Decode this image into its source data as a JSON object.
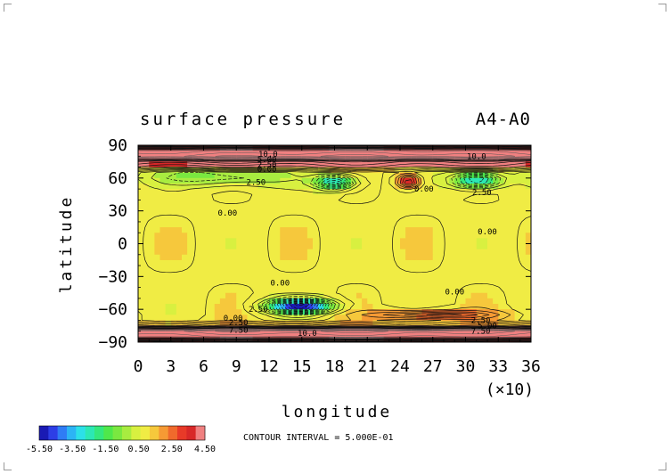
{
  "chart_data": {
    "type": "heatmap",
    "title": "surface pressure",
    "title_right": "A4-A0",
    "xlabel": "longitude",
    "ylabel": "latitude",
    "x_multiplier_label": "(×10)",
    "xticks": [
      0,
      3,
      6,
      9,
      12,
      15,
      18,
      21,
      24,
      27,
      30,
      33,
      36
    ],
    "yticks": [
      90,
      60,
      30,
      0,
      -30,
      -60,
      -90
    ],
    "xlim": [
      0,
      36
    ],
    "ylim": [
      -90,
      90
    ],
    "contour_interval_text": "CONTOUR INTERVAL = 5.000E-01",
    "colorbar": {
      "labels": [
        "-5.50",
        "-3.50",
        "-1.50",
        "0.50",
        "2.50",
        "4.50"
      ],
      "colors": [
        "#1a1ab4",
        "#2d3ee6",
        "#2f7cf5",
        "#2cb4f5",
        "#2ce0e8",
        "#2ce8b4",
        "#34e87c",
        "#4fe84a",
        "#7ae840",
        "#a8ec40",
        "#d8f040",
        "#f0ec44",
        "#f6c83c",
        "#f69a34",
        "#f06a2c",
        "#e83a28",
        "#d82828",
        "#f08080"
      ]
    },
    "contour_labels": [
      {
        "text": "10.0",
        "lon": 11.9,
        "lat": 82
      },
      {
        "text": "5.00",
        "lon": 11.8,
        "lat": 77
      },
      {
        "text": "2.50",
        "lon": 11.8,
        "lat": 72
      },
      {
        "text": "0.00",
        "lon": 11.8,
        "lat": 68
      },
      {
        "text": "2.50",
        "lon": 10.8,
        "lat": 56
      },
      {
        "text": "0.00",
        "lon": 8.2,
        "lat": 28
      },
      {
        "text": "0.00",
        "lon": 26.2,
        "lat": 50
      },
      {
        "text": "10.0",
        "lon": 31.0,
        "lat": 80
      },
      {
        "text": "2.50",
        "lon": 31.5,
        "lat": 47
      },
      {
        "text": "0.00",
        "lon": 32.0,
        "lat": 11
      },
      {
        "text": "0.00",
        "lon": 13.0,
        "lat": -36
      },
      {
        "text": "0.00",
        "lon": 29.0,
        "lat": -44
      },
      {
        "text": "2.50",
        "lon": 11.0,
        "lat": -60
      },
      {
        "text": "0.00",
        "lon": 8.7,
        "lat": -68
      },
      {
        "text": "2.50",
        "lon": 9.2,
        "lat": -72
      },
      {
        "text": "7.50",
        "lon": 9.2,
        "lat": -79
      },
      {
        "text": "10.0",
        "lon": 15.5,
        "lat": -82
      },
      {
        "text": "2.50",
        "lon": 31.4,
        "lat": -70
      },
      {
        "text": "5.00",
        "lon": 32.0,
        "lat": -75
      },
      {
        "text": "7.50",
        "lon": 31.4,
        "lat": -80
      }
    ],
    "field_features": [
      {
        "label": "north polar high band",
        "lon": 18,
        "lat": 82,
        "value": 8.0,
        "lon_width": 60,
        "lat_width": 6
      },
      {
        "label": "north ridge",
        "lon": 18,
        "lat": 72,
        "value": 3.5,
        "lon_width": 60,
        "lat_width": 3
      },
      {
        "label": "north low west",
        "lon": 7.5,
        "lat": 61,
        "value": -2.0,
        "lon_width": 6,
        "lat_width": 8
      },
      {
        "label": "north low 18",
        "lon": 18.0,
        "lat": 56,
        "value": -4.5,
        "lon_width": 1.8,
        "lat_width": 6
      },
      {
        "label": "north high 25",
        "lon": 24.8,
        "lat": 57,
        "value": 3.8,
        "lon_width": 1.0,
        "lat_width": 6
      },
      {
        "label": "north low 31",
        "lon": 31.0,
        "lat": 58,
        "value": -4.5,
        "lon_width": 2.2,
        "lat_width": 7
      },
      {
        "label": "south low 15",
        "lon": 14.8,
        "lat": -57,
        "value": -7.0,
        "lon_width": 2.8,
        "lat_width": 6
      },
      {
        "label": "south high east",
        "lon": 27.0,
        "lat": -65,
        "value": 3.0,
        "lon_width": 5.5,
        "lat_width": 4
      },
      {
        "label": "south polar high band",
        "lon": 18,
        "lat": -82,
        "value": 8.0,
        "lon_width": 60,
        "lat_width": 6
      }
    ]
  }
}
